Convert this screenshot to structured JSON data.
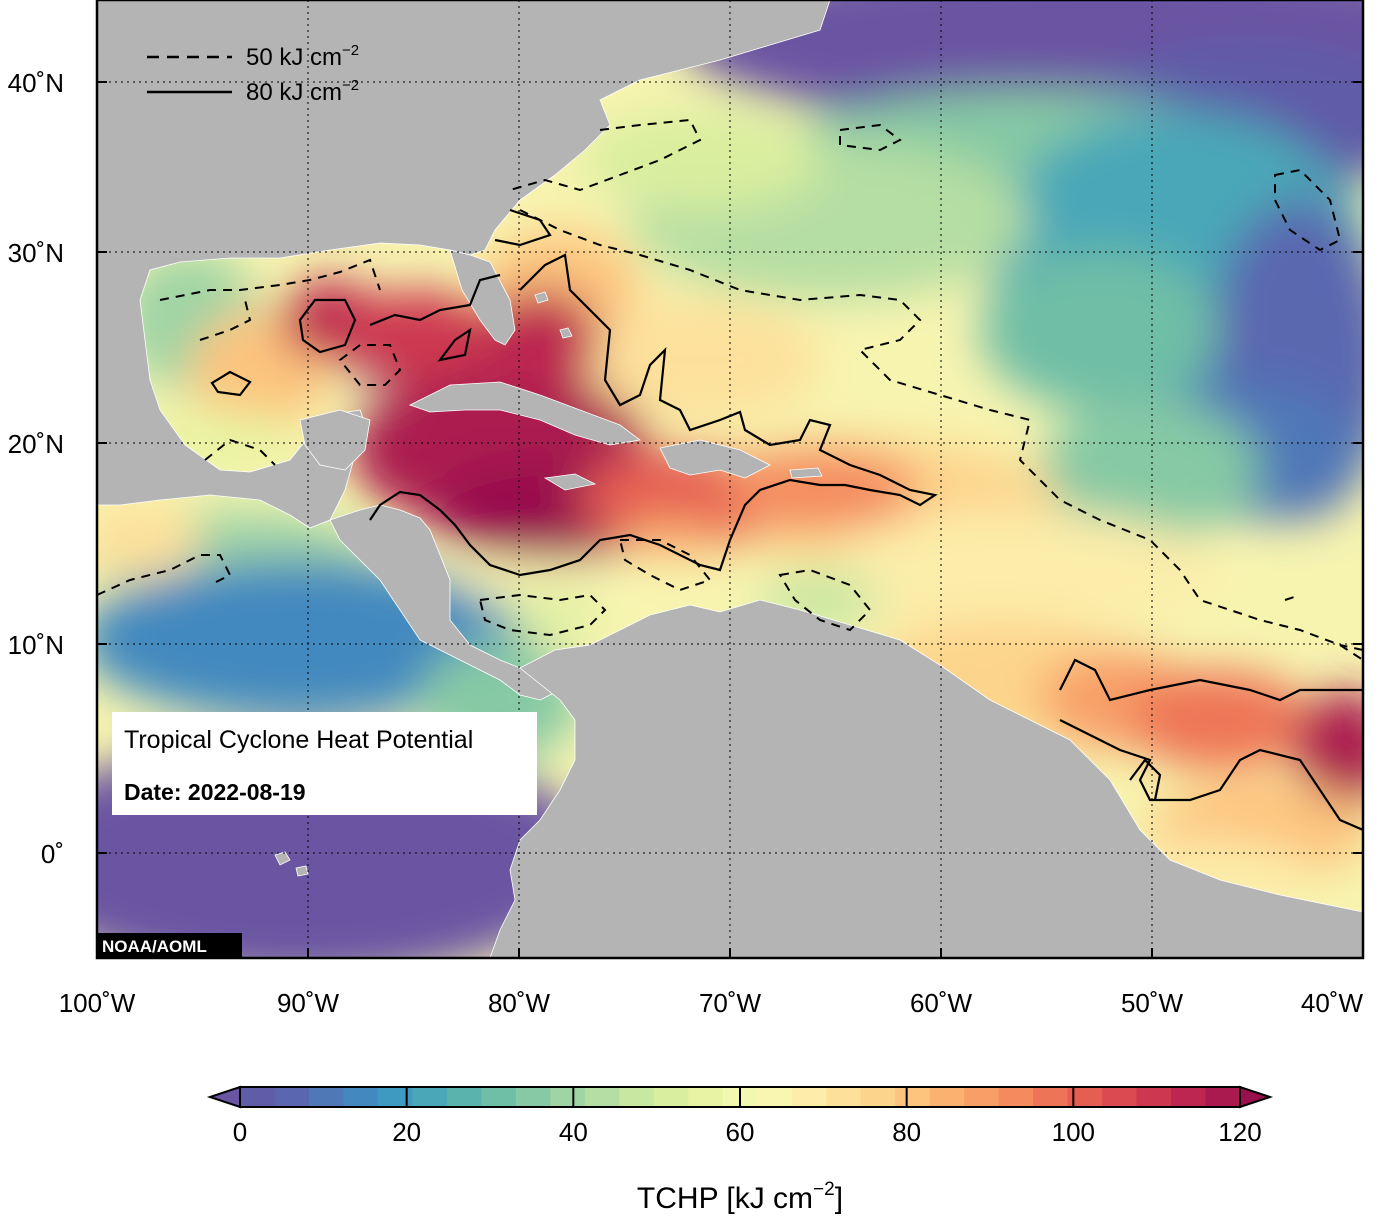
{
  "map": {
    "lat_labels": [
      "40˚N",
      "30˚N",
      "20˚N",
      "10˚N",
      "0˚"
    ],
    "lon_labels": [
      "100˚W",
      "90˚W",
      "80˚W",
      "70˚W",
      "60˚W",
      "50˚W",
      "40˚W"
    ],
    "land_color": "#b4b4b4",
    "credit": "NOAA/AOML"
  },
  "legend": {
    "dashed_label": "50 kJ cm",
    "solid_label": "80 kJ cm",
    "exponent": "−2"
  },
  "info_box": {
    "title": "Tropical Cyclone Heat Potential",
    "date": "Date: 2022-08-19"
  },
  "colorbar": {
    "ticks": [
      "0",
      "20",
      "40",
      "60",
      "80",
      "100",
      "120"
    ],
    "label_prefix": "TCHP [kJ cm",
    "label_exponent": "−2",
    "label_suffix": "]",
    "colors": [
      "#6a55a3",
      "#5f5ca8",
      "#5a67b0",
      "#4f78b7",
      "#4389bf",
      "#3f9ac2",
      "#4aa7b7",
      "#5bb3ad",
      "#6fbea6",
      "#86c9a4",
      "#9fd4a5",
      "#b5dea3",
      "#c8e7a1",
      "#d9ee9f",
      "#e8f4a3",
      "#f3f8b0",
      "#f9f6b2",
      "#fcedaa",
      "#fde19b",
      "#fdd48b",
      "#fdc47e",
      "#fbb271",
      "#f89f67",
      "#f48a5e",
      "#ee7457",
      "#e65e52",
      "#db4a50",
      "#cd3750",
      "#bd2650",
      "#ab1a4f",
      "#98114d"
    ]
  }
}
